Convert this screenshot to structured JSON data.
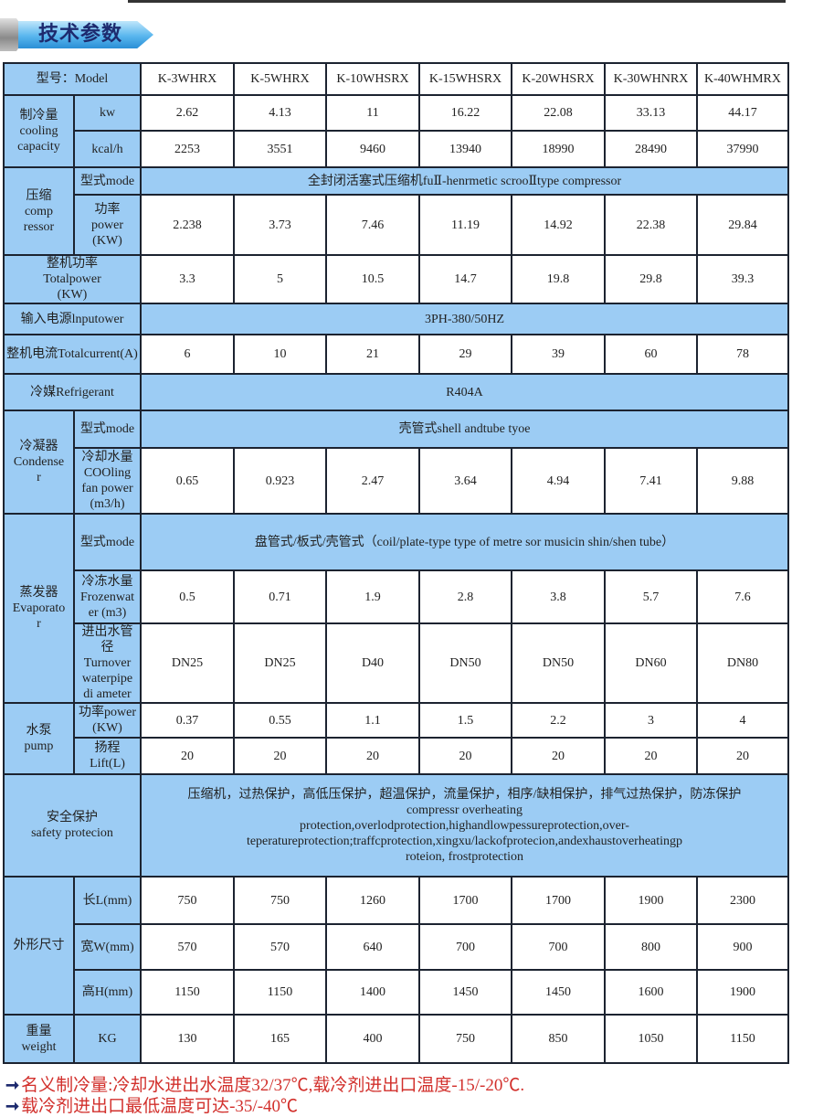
{
  "header": {
    "title": "技术参数"
  },
  "model_label": "型号：Model",
  "models": [
    "K-3WHRX",
    "K-5WHRX",
    "K-10WHSRX",
    "K-15WHSRX",
    "K-20WHSRX",
    "K-30WHNRX",
    "K-40WHMRX"
  ],
  "sections": [
    {
      "label": "制冷量\ncooling\ncapacity",
      "rows": [
        {
          "sub": "kw",
          "values": [
            "2.62",
            "4.13",
            "11",
            "16.22",
            "22.08",
            "33.13",
            "44.17"
          ]
        },
        {
          "sub": "kcal/h",
          "values": [
            "2253",
            "3551",
            "9460",
            "13940",
            "18990",
            "28490",
            "37990"
          ]
        }
      ]
    },
    {
      "label": "压缩\ncomp\nressor",
      "rows": [
        {
          "sub": "型式mode",
          "span": "全封闭活塞式压缩机fuⅡ-henrmetic scrooⅡtype compressor"
        },
        {
          "sub": "功率\npower\n(KW)",
          "values": [
            "2.238",
            "3.73",
            "7.46",
            "11.19",
            "14.92",
            "22.38",
            "29.84"
          ]
        }
      ]
    },
    {
      "label": "整机功率\nTotalpower\n(KW)",
      "rows": [
        {
          "values": [
            "3.3",
            "5",
            "10.5",
            "14.7",
            "19.8",
            "29.8",
            "39.3"
          ]
        }
      ]
    },
    {
      "label": "输入电源lnputower",
      "rows": [
        {
          "span": "3PH-380/50HZ"
        }
      ]
    },
    {
      "label": "整机电流Totalcurrent(A)",
      "rows": [
        {
          "values": [
            "6",
            "10",
            "21",
            "29",
            "39",
            "60",
            "78"
          ]
        }
      ]
    },
    {
      "label": "冷媒Refrigerant",
      "rows": [
        {
          "span": "R404A"
        }
      ]
    },
    {
      "label": "冷凝器\nCondense\nr",
      "rows": [
        {
          "sub": "型式mode",
          "span": "壳管式shell andtube tyoe"
        },
        {
          "sub": "冷却水量\nCOOling\nfan power\n(m3/h)",
          "values": [
            "0.65",
            "0.923",
            "2.47",
            "3.64",
            "4.94",
            "7.41",
            "9.88"
          ]
        }
      ]
    },
    {
      "label": "蒸发器\nEvaporato\nr",
      "rows": [
        {
          "sub": "型式mode",
          "span": "盘管式/板式/壳管式（coil/plate-type type of metre sor musicin shin/shen tube）"
        },
        {
          "sub": "冷冻水量\nFrozenwat\ner (m3)",
          "values": [
            "0.5",
            "0.71",
            "1.9",
            "2.8",
            "3.8",
            "5.7",
            "7.6"
          ]
        },
        {
          "sub": "进出水管径\nTurnover\nwaterpipe\ndi ameter",
          "values": [
            "DN25",
            "DN25",
            "D40",
            "DN50",
            "DN50",
            "DN60",
            "DN80"
          ]
        }
      ]
    },
    {
      "label": "水泵\npump",
      "rows": [
        {
          "sub": "功率power\n(KW)",
          "values": [
            "0.37",
            "0.55",
            "1.1",
            "1.5",
            "2.2",
            "3",
            "4"
          ]
        },
        {
          "sub": "扬程\nLift(L)",
          "values": [
            "20",
            "20",
            "20",
            "20",
            "20",
            "20",
            "20"
          ]
        }
      ]
    },
    {
      "label": "安全保护\nsafety protecion",
      "rows": [
        {
          "span": "压缩机，过热保护，高低压保护，超温保护，流量保护，相序/缺相保护，排气过热保护，防冻保护\ncompressr overheating\nprotection,overlodprotection,highandlowpessureprotection,over-\nteperatureprotection;traffcprotection,xingxu/lackofprotecion,andexhaustoverheatingp\nroteion,      frostprotection"
        }
      ]
    },
    {
      "label": "外形尺寸",
      "rows": [
        {
          "sub": "长L(mm)",
          "values": [
            "750",
            "750",
            "1260",
            "1700",
            "1700",
            "1900",
            "2300"
          ]
        },
        {
          "sub": "宽W(mm)",
          "values": [
            "570",
            "570",
            "640",
            "700",
            "700",
            "800",
            "900"
          ]
        },
        {
          "sub": "高H(mm)",
          "values": [
            "1150",
            "1150",
            "1400",
            "1450",
            "1450",
            "1600",
            "1900"
          ]
        }
      ]
    },
    {
      "label": "重量\nweight",
      "rows": [
        {
          "sub": "KG",
          "values": [
            "130",
            "165",
            "400",
            "750",
            "850",
            "1050",
            "1150"
          ]
        }
      ]
    }
  ],
  "footer": {
    "icon": "arrow-right-icon",
    "notes": [
      "名义制冷量:冷却水进出水温度32/37℃,载冷剂进出口温度-15/-20℃.",
      "载冷剂进出口最低温度可达-35/-40℃"
    ]
  },
  "colors": {
    "label_bg": "#9cccf4",
    "border": "#1c2330",
    "note_text": "#d2302c",
    "title": "#1d2a6e"
  }
}
